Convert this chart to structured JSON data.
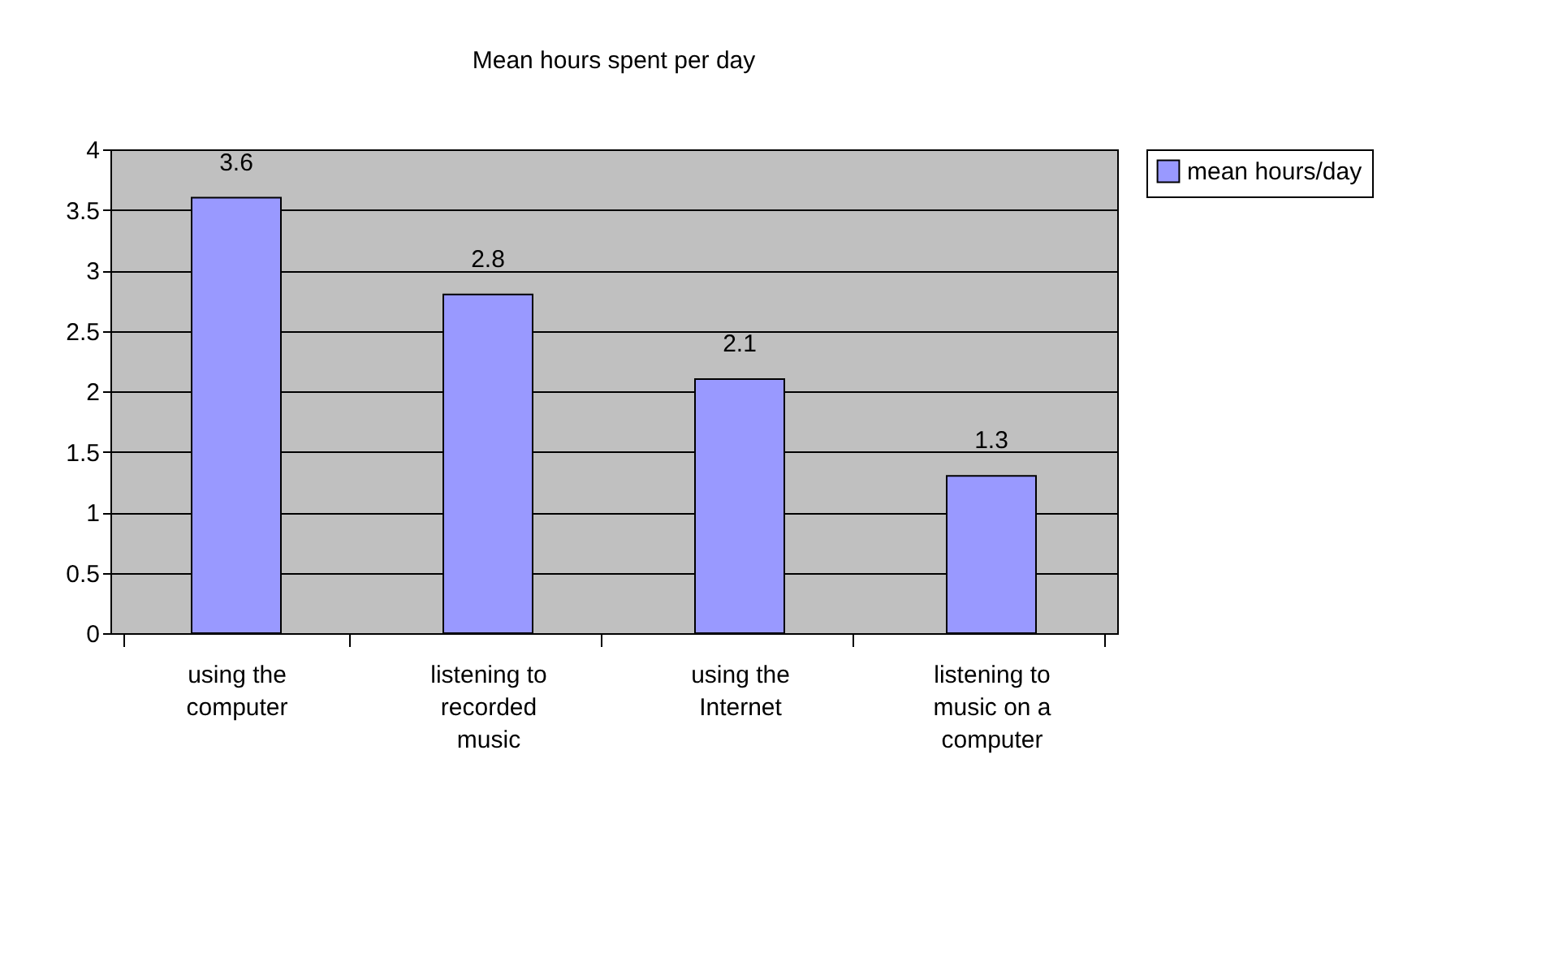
{
  "chart_data": {
    "type": "bar",
    "title": "Mean hours spent per day",
    "categories": [
      "using the computer",
      "listening to recorded music",
      "using the Internet",
      "listening to music on a computer"
    ],
    "series": [
      {
        "name": "mean hours/day",
        "color": "#9999ff",
        "values": [
          3.6,
          2.8,
          2.1,
          1.3
        ]
      }
    ],
    "ylim": [
      0,
      4
    ],
    "yticks": [
      0,
      0.5,
      1,
      1.5,
      2,
      2.5,
      3,
      3.5,
      4
    ],
    "grid": "y",
    "legend": "right",
    "data_labels": true
  }
}
